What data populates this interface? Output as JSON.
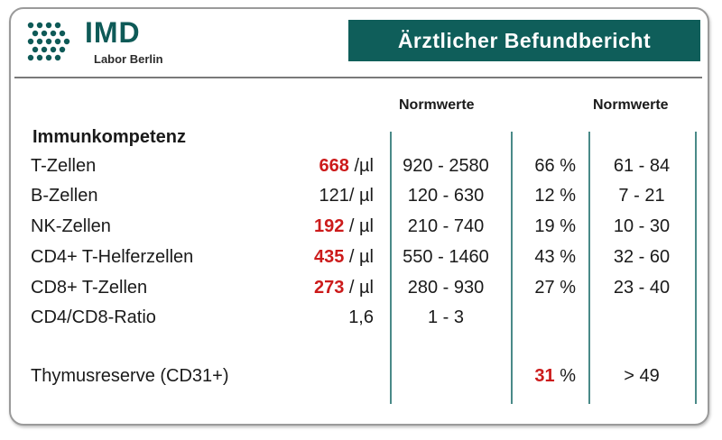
{
  "logo": {
    "name": "IMD",
    "subtitle": "Labor Berlin"
  },
  "banner": {
    "title": "Ärztlicher Befundbericht"
  },
  "headers": {
    "norm_abs": "Normwerte",
    "norm_pct": "Normwerte"
  },
  "section": {
    "title": "Immunkompetenz"
  },
  "colors": {
    "brand": "#0f5e5a",
    "highlight": "#cc1b1b",
    "divider": "#4a8a88"
  },
  "rows": [
    {
      "label": "T-Zellen",
      "value": "668",
      "unit": " /µl",
      "flag": true,
      "range": "920 - 2580",
      "pct": "66",
      "pct_unit": " %",
      "pct_flag": false,
      "pct_range": "61 - 84"
    },
    {
      "label": "B-Zellen",
      "value": "121",
      "unit": "/ µl",
      "flag": false,
      "range": "120 - 630",
      "pct": "12",
      "pct_unit": " %",
      "pct_flag": false,
      "pct_range": "7 - 21"
    },
    {
      "label": "NK-Zellen",
      "value": "192",
      "unit": " / µl",
      "flag": true,
      "range": "210 - 740",
      "pct": "19",
      "pct_unit": " %",
      "pct_flag": false,
      "pct_range": "10 - 30"
    },
    {
      "label": "CD4+ T-Helferzellen",
      "value": "435",
      "unit": " / µl",
      "flag": true,
      "range": "550 - 1460",
      "pct": "43",
      "pct_unit": " %",
      "pct_flag": false,
      "pct_range": "32 - 60"
    },
    {
      "label": "CD8+ T-Zellen",
      "value": "273",
      "unit": " / µl",
      "flag": true,
      "range": "280 - 930",
      "pct": "27",
      "pct_unit": " %",
      "pct_flag": false,
      "pct_range": "23 - 40"
    },
    {
      "label": "CD4/CD8-Ratio",
      "value": "1,6",
      "unit": "",
      "flag": false,
      "range": "1 - 3",
      "pct": "",
      "pct_unit": "",
      "pct_flag": false,
      "pct_range": ""
    },
    {
      "label": "Thymusreserve (CD31+)",
      "value": "",
      "unit": "",
      "flag": false,
      "range": "",
      "pct": "31",
      "pct_unit": " %",
      "pct_flag": true,
      "pct_range": "> 49"
    }
  ]
}
